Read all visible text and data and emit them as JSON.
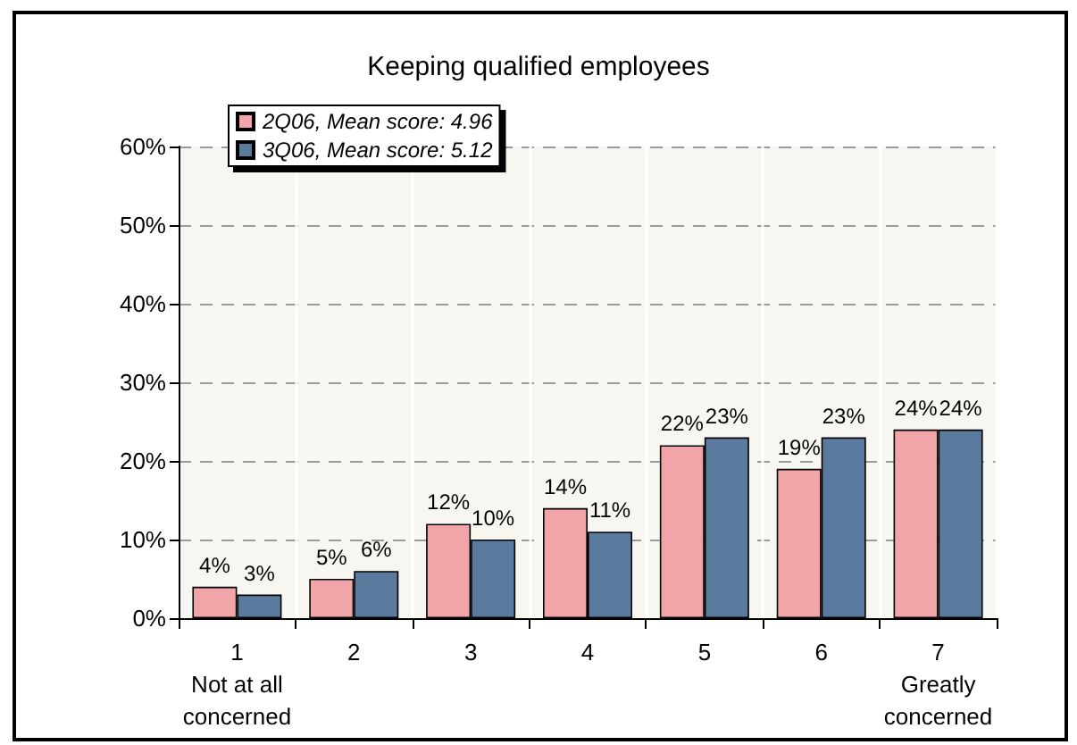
{
  "chart_data": {
    "type": "bar",
    "title": "Keeping qualified employees",
    "categories": [
      "1\nNot at all\nconcerned",
      "2",
      "3",
      "4",
      "5",
      "6",
      "7\nGreatly\nconcerned"
    ],
    "series": [
      {
        "name": "2Q06, Mean score: 4.96",
        "color": "#f2a5a8",
        "values": [
          4,
          5,
          12,
          14,
          22,
          19,
          24
        ],
        "value_labels": [
          "4%",
          "5%",
          "12%",
          "14%",
          "22%",
          "19%",
          "24%"
        ]
      },
      {
        "name": "3Q06, Mean score: 5.12",
        "color": "#5a7a9e",
        "values": [
          3,
          6,
          10,
          11,
          23,
          23,
          24
        ],
        "value_labels": [
          "3%",
          "6%",
          "10%",
          "11%",
          "23%",
          "23%",
          "24%"
        ]
      }
    ],
    "ylim": [
      0,
      60
    ],
    "yticks": [
      {
        "value": 0,
        "label": "0%"
      },
      {
        "value": 10,
        "label": "10%"
      },
      {
        "value": 20,
        "label": "20%"
      },
      {
        "value": 30,
        "label": "30%"
      },
      {
        "value": 40,
        "label": "40%"
      },
      {
        "value": 50,
        "label": "50%"
      },
      {
        "value": 60,
        "label": "60%"
      }
    ],
    "grid": true,
    "legend": "top left"
  }
}
